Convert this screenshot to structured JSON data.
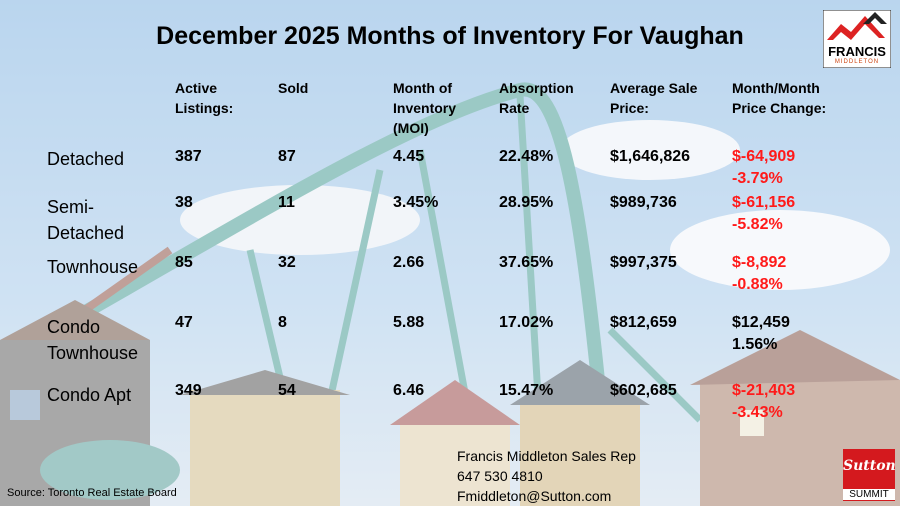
{
  "title": "December 2025 Months of Inventory For Vaughan",
  "logo": {
    "name": "FRANCIS",
    "sub": "MIDDLETON"
  },
  "headers": [
    [
      "Active",
      "Listings:"
    ],
    [
      "Sold"
    ],
    [
      "Month of",
      "Inventory",
      "(MOI)"
    ],
    [
      "Absorption",
      "Rate"
    ],
    [
      "Average Sale",
      "Price:"
    ],
    [
      "Month/Month",
      "Price Change:"
    ]
  ],
  "rows": [
    {
      "label": [
        "Detached"
      ],
      "active": "387",
      "sold": "87",
      "moi": "4.45",
      "absorption": "22.48%",
      "avg_price": "$1,646,826",
      "change": [
        "$-64,909",
        "-3.79%"
      ],
      "negative": true
    },
    {
      "label": [
        "Semi-",
        "Detached"
      ],
      "active": "38",
      "sold": "11",
      "moi": "3.45%",
      "absorption": "28.95%",
      "avg_price": "$989,736",
      "change": [
        "$-61,156",
        "-5.82%"
      ],
      "negative": true
    },
    {
      "label": [
        "Townhouse"
      ],
      "active": "85",
      "sold": "32",
      "moi": "2.66",
      "absorption": "37.65%",
      "avg_price": "$997,375",
      "change": [
        "$-8,892",
        "-0.88%"
      ],
      "negative": true
    },
    {
      "label": [
        "Condo",
        "Townhouse"
      ],
      "active": "47",
      "sold": "8",
      "moi": "5.88",
      "absorption": "17.02%",
      "avg_price": "$812,659",
      "change": [
        "$12,459",
        "1.56%"
      ],
      "negative": false
    },
    {
      "label": [
        "Condo Apt"
      ],
      "active": "349",
      "sold": "54",
      "moi": "6.46",
      "absorption": "15.47%",
      "avg_price": "$602,685",
      "change": [
        "$-21,403",
        "-3.43%"
      ],
      "negative": true
    }
  ],
  "source": "Source: Toronto Real Estate Board",
  "contact": {
    "name": "Francis Middleton Sales Rep",
    "phone": "647 530 4810",
    "email": "Fmiddleton@Sutton.com"
  },
  "brand": {
    "word": "Sutton",
    "sub": "SUMMIT"
  },
  "colors": {
    "negative": "#ff1a1a",
    "brand_red": "#d4191e"
  }
}
